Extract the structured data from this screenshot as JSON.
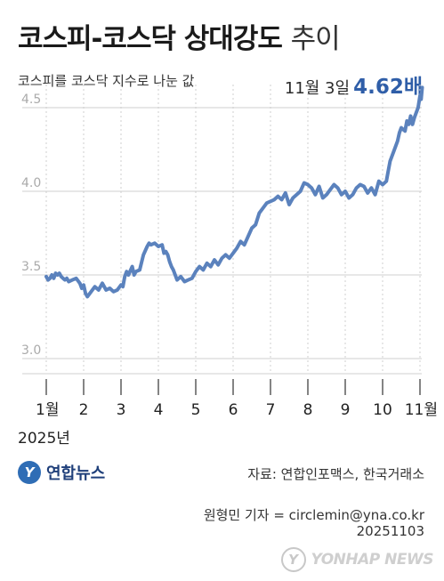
{
  "title_bold": "코스피-코스닥 상대강도",
  "title_light": "추이",
  "subtitle": "코스피를 코스닥 지수로 나눈 값",
  "callout": {
    "date_text": "11월 3일",
    "value_text": "4.62배"
  },
  "year_label": "2025년",
  "logo": {
    "mark": "Y",
    "name": "연합뉴스"
  },
  "source": "자료: 연합인포맥스, 한국거래소",
  "author": "원형민 기자 = circlemin@yna.co.kr",
  "date_code": "20251103",
  "watermark": {
    "mark": "Y",
    "text": "YONHAP NEWS"
  },
  "colors": {
    "line": "#5b82bd",
    "accent": "#2f5ea8",
    "grid": "#cfcfcf",
    "axis_text": "#aaaaaa"
  },
  "chart_data": {
    "type": "line",
    "title": "코스피-코스닥 상대강도 추이",
    "subtitle": "코스피를 코스닥 지수로 나눈 값",
    "xlabel": "",
    "ylabel": "",
    "ylim": [
      2.9,
      4.6
    ],
    "y_ticks": [
      3.0,
      3.5,
      4.0,
      4.5
    ],
    "y_tick_labels": [
      "3.0",
      "3.5",
      "4.0",
      "4.5"
    ],
    "x_ticks": [
      1,
      2,
      3,
      4,
      5,
      6,
      7,
      8,
      9,
      10,
      11
    ],
    "x_tick_labels": [
      "1월",
      "2",
      "3",
      "4",
      "5",
      "6",
      "7",
      "8",
      "9",
      "10",
      "11월"
    ],
    "x_unit": "month",
    "grid": true,
    "annotation": {
      "x": 11.06,
      "y": 4.62,
      "text": "11월 3일 4.62배"
    },
    "series": [
      {
        "points": [
          [
            1.0,
            3.49
          ],
          [
            1.05,
            3.47
          ],
          [
            1.1,
            3.48
          ],
          [
            1.15,
            3.5
          ],
          [
            1.2,
            3.48
          ],
          [
            1.25,
            3.51
          ],
          [
            1.3,
            3.5
          ],
          [
            1.35,
            3.51
          ],
          [
            1.4,
            3.49
          ],
          [
            1.45,
            3.48
          ],
          [
            1.5,
            3.47
          ],
          [
            1.55,
            3.48
          ],
          [
            1.6,
            3.46
          ],
          [
            1.7,
            3.47
          ],
          [
            1.8,
            3.48
          ],
          [
            1.9,
            3.45
          ],
          [
            1.95,
            3.42
          ],
          [
            2.0,
            3.44
          ],
          [
            2.05,
            3.39
          ],
          [
            2.1,
            3.37
          ],
          [
            2.2,
            3.4
          ],
          [
            2.3,
            3.43
          ],
          [
            2.4,
            3.41
          ],
          [
            2.5,
            3.45
          ],
          [
            2.6,
            3.41
          ],
          [
            2.7,
            3.42
          ],
          [
            2.8,
            3.4
          ],
          [
            2.9,
            3.41
          ],
          [
            3.0,
            3.44
          ],
          [
            3.05,
            3.43
          ],
          [
            3.1,
            3.49
          ],
          [
            3.15,
            3.52
          ],
          [
            3.2,
            3.5
          ],
          [
            3.3,
            3.55
          ],
          [
            3.35,
            3.5
          ],
          [
            3.4,
            3.52
          ],
          [
            3.5,
            3.53
          ],
          [
            3.6,
            3.62
          ],
          [
            3.7,
            3.67
          ],
          [
            3.75,
            3.69
          ],
          [
            3.8,
            3.68
          ],
          [
            3.9,
            3.69
          ],
          [
            4.0,
            3.67
          ],
          [
            4.1,
            3.68
          ],
          [
            4.15,
            3.63
          ],
          [
            4.2,
            3.64
          ],
          [
            4.25,
            3.62
          ],
          [
            4.3,
            3.58
          ],
          [
            4.35,
            3.55
          ],
          [
            4.4,
            3.53
          ],
          [
            4.5,
            3.47
          ],
          [
            4.6,
            3.49
          ],
          [
            4.7,
            3.46
          ],
          [
            4.8,
            3.47
          ],
          [
            4.9,
            3.48
          ],
          [
            5.0,
            3.52
          ],
          [
            5.1,
            3.55
          ],
          [
            5.2,
            3.53
          ],
          [
            5.3,
            3.57
          ],
          [
            5.4,
            3.55
          ],
          [
            5.5,
            3.59
          ],
          [
            5.6,
            3.56
          ],
          [
            5.7,
            3.6
          ],
          [
            5.8,
            3.62
          ],
          [
            5.9,
            3.6
          ],
          [
            6.0,
            3.63
          ],
          [
            6.1,
            3.66
          ],
          [
            6.2,
            3.7
          ],
          [
            6.3,
            3.68
          ],
          [
            6.4,
            3.73
          ],
          [
            6.5,
            3.78
          ],
          [
            6.6,
            3.8
          ],
          [
            6.7,
            3.87
          ],
          [
            6.8,
            3.9
          ],
          [
            6.9,
            3.93
          ],
          [
            7.0,
            3.94
          ],
          [
            7.1,
            3.95
          ],
          [
            7.2,
            3.97
          ],
          [
            7.3,
            3.95
          ],
          [
            7.4,
            3.99
          ],
          [
            7.5,
            3.92
          ],
          [
            7.6,
            3.96
          ],
          [
            7.7,
            3.98
          ],
          [
            7.8,
            4.0
          ],
          [
            7.9,
            4.05
          ],
          [
            8.0,
            4.04
          ],
          [
            8.1,
            4.02
          ],
          [
            8.2,
            3.98
          ],
          [
            8.3,
            4.03
          ],
          [
            8.4,
            3.96
          ],
          [
            8.5,
            3.98
          ],
          [
            8.6,
            4.01
          ],
          [
            8.7,
            4.04
          ],
          [
            8.8,
            4.02
          ],
          [
            8.9,
            3.98
          ],
          [
            9.0,
            4.0
          ],
          [
            9.1,
            3.96
          ],
          [
            9.2,
            3.98
          ],
          [
            9.3,
            4.02
          ],
          [
            9.4,
            4.04
          ],
          [
            9.5,
            4.03
          ],
          [
            9.6,
            3.99
          ],
          [
            9.7,
            4.02
          ],
          [
            9.8,
            3.98
          ],
          [
            9.9,
            4.06
          ],
          [
            10.0,
            4.04
          ],
          [
            10.1,
            4.06
          ],
          [
            10.15,
            4.12
          ],
          [
            10.2,
            4.18
          ],
          [
            10.3,
            4.24
          ],
          [
            10.4,
            4.3
          ],
          [
            10.45,
            4.35
          ],
          [
            10.5,
            4.38
          ],
          [
            10.6,
            4.36
          ],
          [
            10.65,
            4.42
          ],
          [
            10.7,
            4.4
          ],
          [
            10.75,
            4.45
          ],
          [
            10.8,
            4.4
          ],
          [
            10.85,
            4.44
          ],
          [
            10.9,
            4.47
          ],
          [
            10.95,
            4.5
          ],
          [
            11.0,
            4.57
          ],
          [
            11.03,
            4.55
          ],
          [
            11.06,
            4.62
          ]
        ]
      }
    ]
  }
}
